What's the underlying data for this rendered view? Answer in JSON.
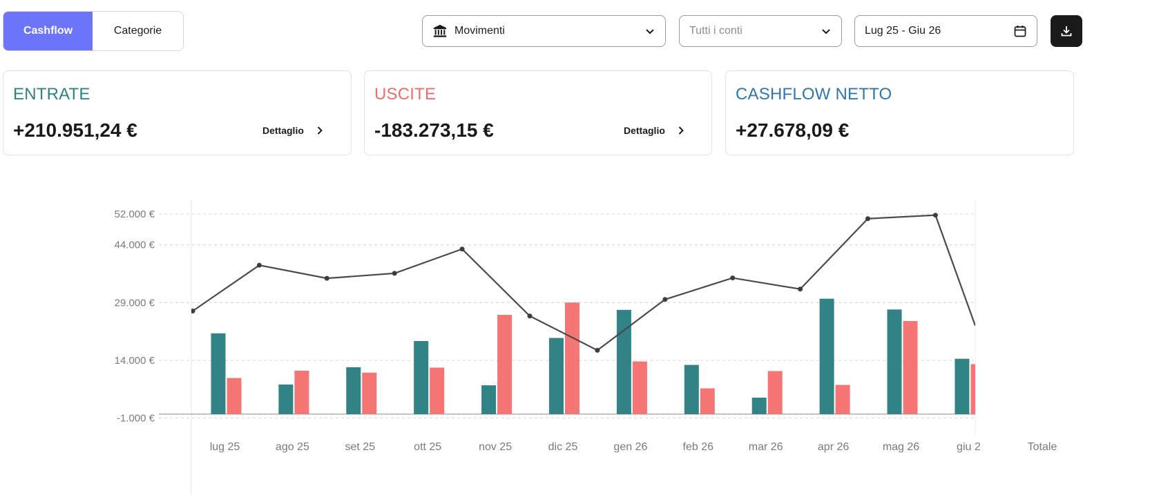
{
  "tabs": {
    "cashflow": "Cashflow",
    "categorie": "Categorie"
  },
  "filters": {
    "movimenti": "Movimenti",
    "conti_placeholder": "Tutti i conti",
    "period": "Lug 25 - Giu 26"
  },
  "icons": {
    "bank": "bank-icon",
    "chevron": "chevron-down-icon",
    "calendar": "calendar-icon",
    "download": "download-icon"
  },
  "cards": {
    "entrate": {
      "title": "ENTRATE",
      "value": "+210.951,24 €",
      "link": "Dettaglio",
      "color": "#2f8284"
    },
    "uscite": {
      "title": "USCITE",
      "value": "-183.273,15 €",
      "link": "Dettaglio",
      "color": "#f16b6b"
    },
    "netto": {
      "title": "CASHFLOW NETTO",
      "value": "+27.678,09 €",
      "color": "#2f75b2"
    }
  },
  "chart_data": {
    "type": "bar",
    "categories": [
      "lug 25",
      "ago 25",
      "set 25",
      "ott 25",
      "nov 25",
      "dic 25",
      "gen 26",
      "feb 26",
      "mar 26",
      "apr 26",
      "mag 26",
      "giu 2"
    ],
    "extra_category": "Totale",
    "y_ticks": [
      52000,
      44000,
      29000,
      14000,
      -1000
    ],
    "y_tick_labels": [
      "52.000 €",
      "44.000 €",
      "29.000 €",
      "14.000 €",
      "-1.000 €"
    ],
    "ylim": [
      -1000,
      52000
    ],
    "grid": true,
    "series": [
      {
        "type": "bar",
        "color": "#328385",
        "values": [
          21000,
          7700,
          12200,
          19000,
          7500,
          19800,
          27100,
          12800,
          4300,
          30000,
          27200,
          14400
        ]
      },
      {
        "type": "bar",
        "color": "#f57474",
        "values": [
          9400,
          11300,
          10800,
          12100,
          25800,
          29000,
          13700,
          6700,
          11200,
          7600,
          24200,
          13000
        ]
      },
      {
        "type": "line",
        "color": "#4a4a4a",
        "values": [
          26800,
          38700,
          35300,
          36600,
          42900,
          25500,
          16600,
          29800,
          35400,
          32500,
          50800,
          51700
        ]
      }
    ],
    "line_end_value": 23000
  }
}
